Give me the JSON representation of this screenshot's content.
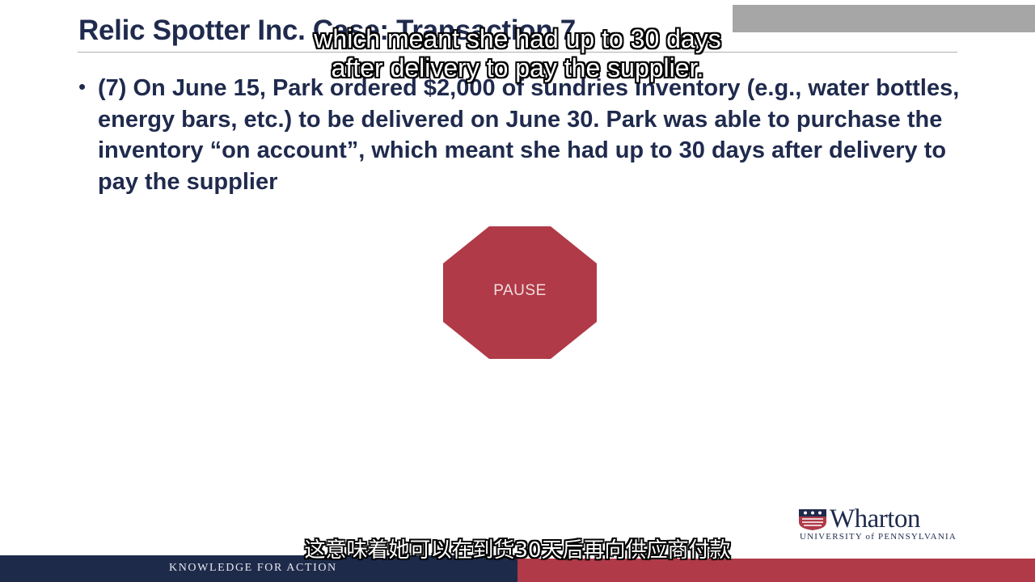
{
  "slide": {
    "title": "Relic Spotter Inc. Case: Transaction 7",
    "bullet_marker": "•",
    "bullet_text": "(7) On June 15, Park ordered $2,000 of sundries inventory (e.g., water bottles, energy bars, etc.) to be delivered on June 30.  Park was able to purchase the inventory “on account”, which meant she had up to 30 days after delivery to pay the supplier",
    "pause_label": "PAUSE"
  },
  "subtitles": {
    "english_line1": "which meant she had up to 30 days",
    "english_line2": "after delivery to pay the supplier.",
    "chinese": "这意味着她可以在到货30天后再向供应商付款"
  },
  "branding": {
    "logo_name": "Wharton",
    "logo_subtitle": "UNIVERSITY of PENNSYLVANIA",
    "shield_icon": "penn-shield-icon",
    "footer_tagline": "KNOWLEDGE FOR ACTION"
  },
  "colors": {
    "navy": "#1e2a4a",
    "text_navy": "#1f2a4d",
    "penn_red": "#b03a48"
  }
}
